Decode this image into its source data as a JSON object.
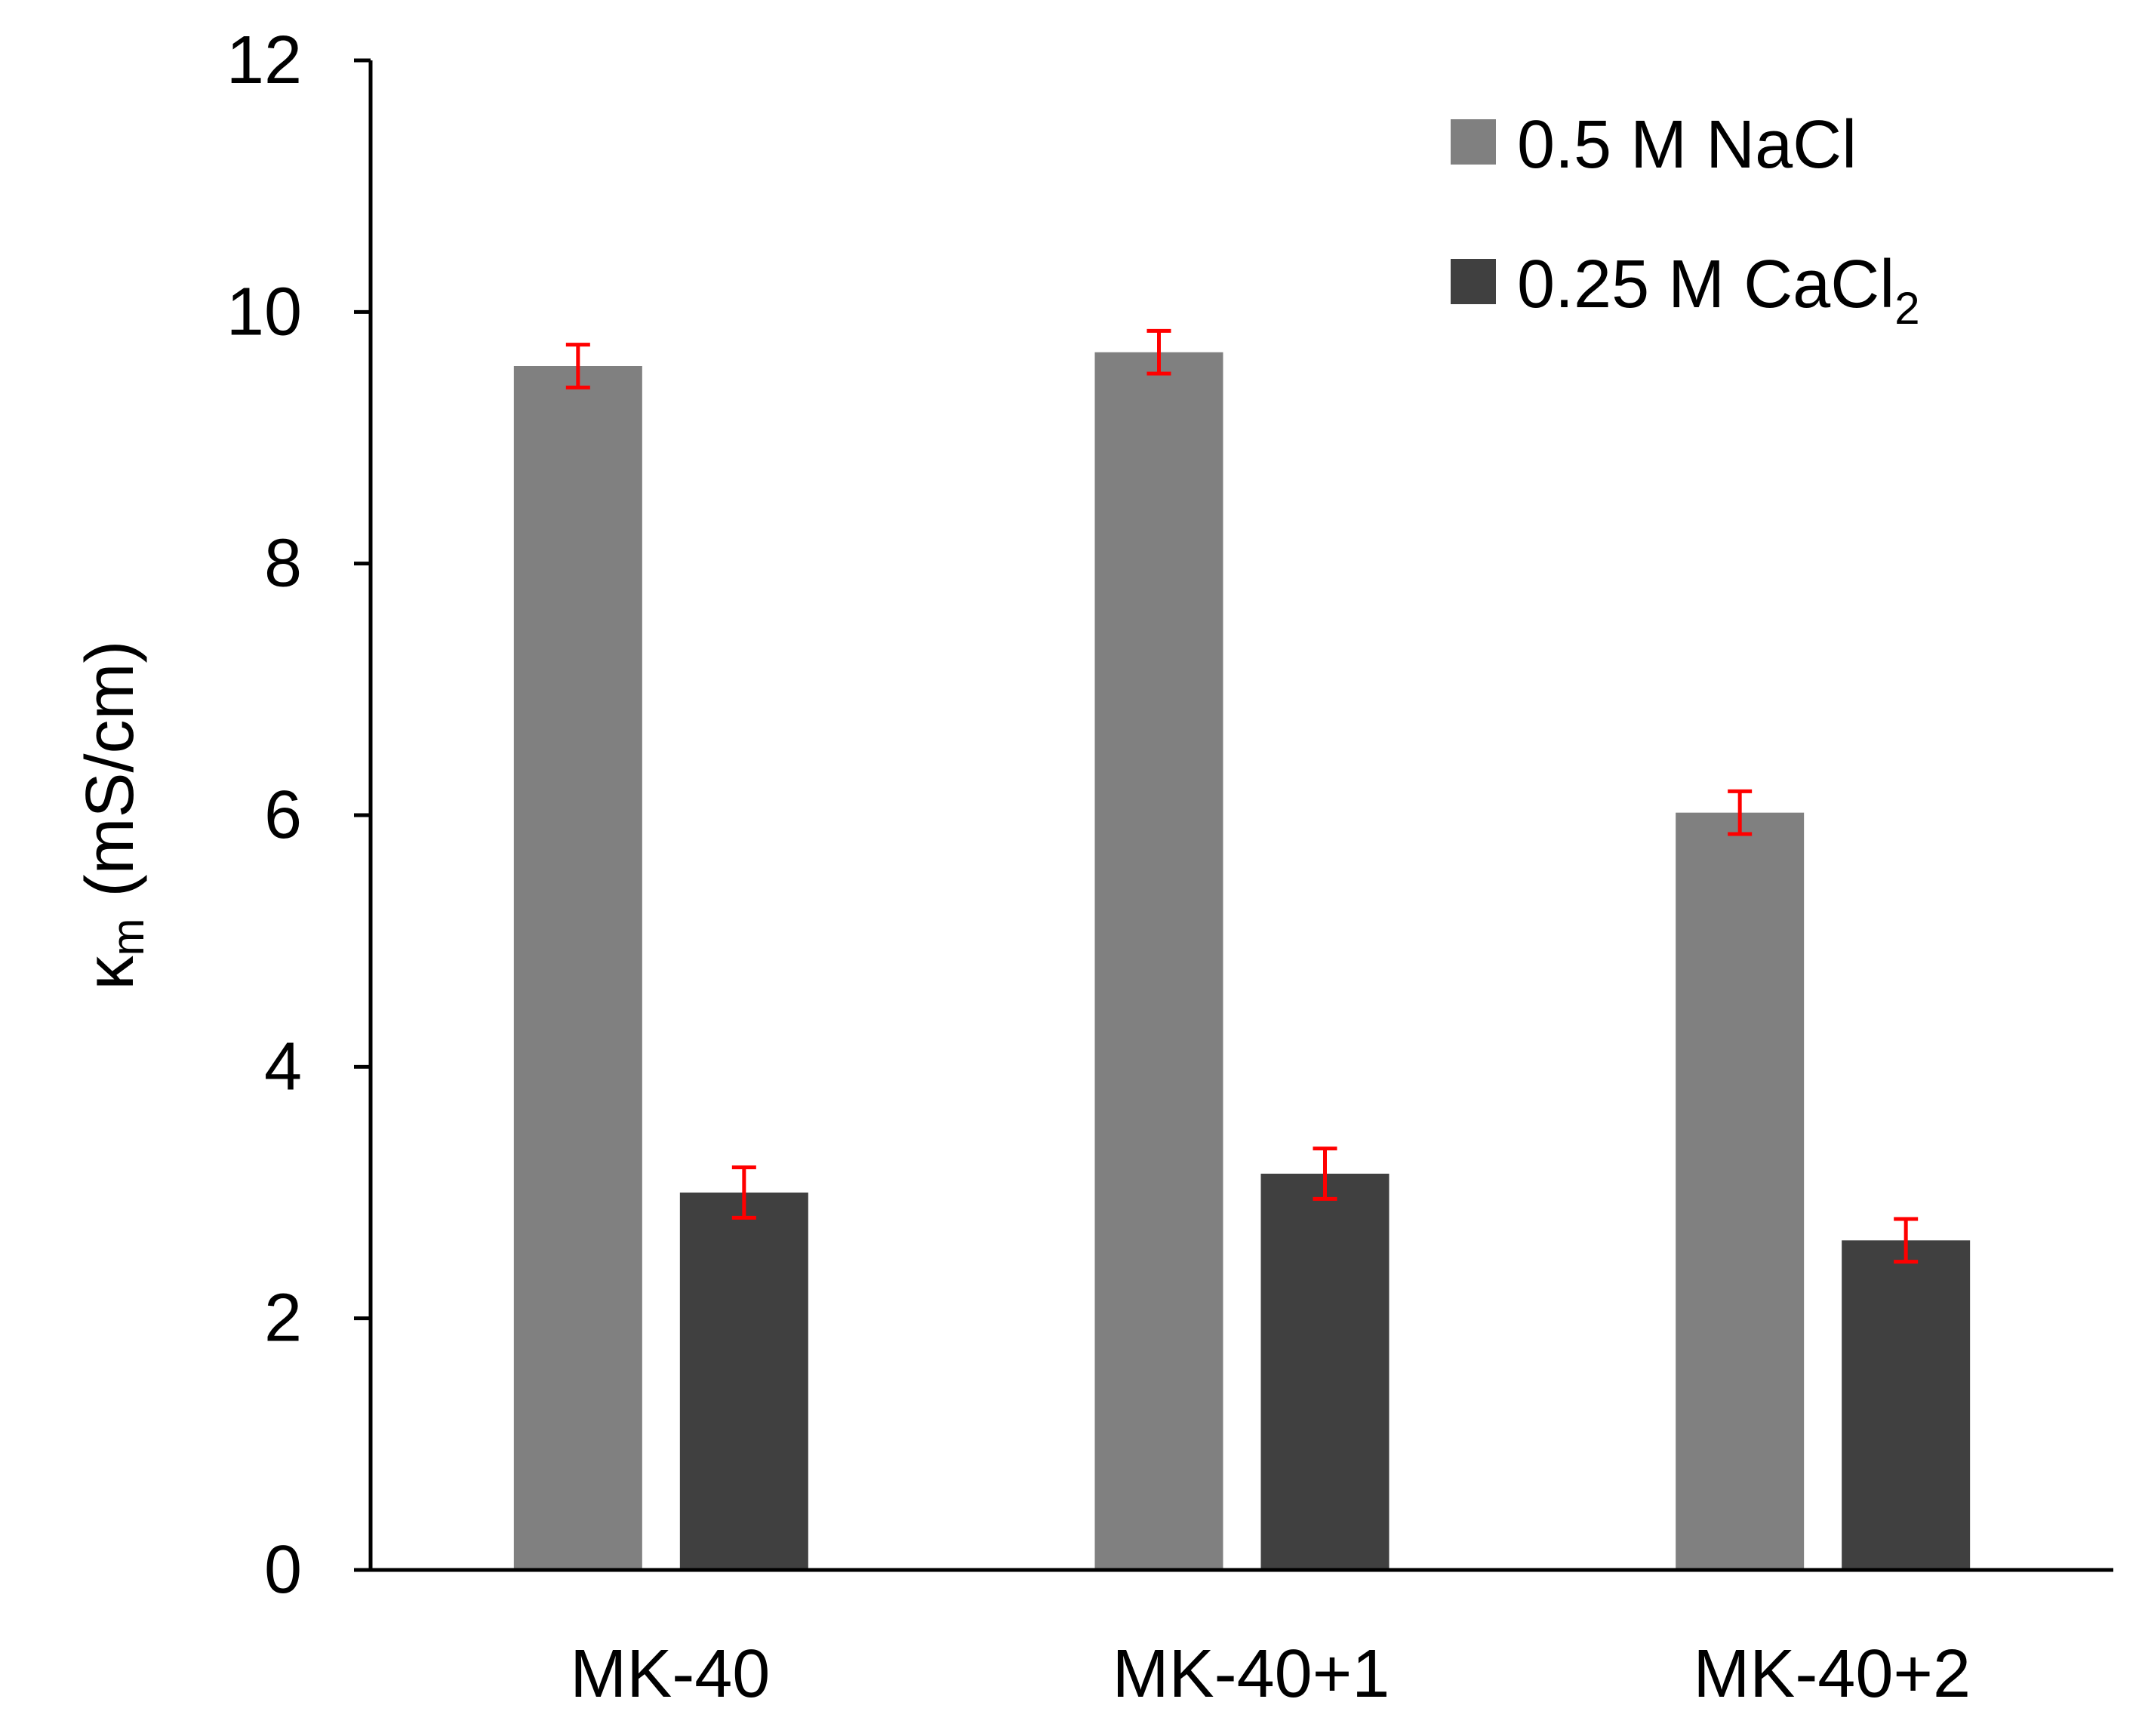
{
  "chart_data": {
    "type": "bar",
    "title": "",
    "xlabel": "",
    "ylabel": {
      "symbol": "κ",
      "subscript": "m",
      "unit": "(mS/cm)"
    },
    "ylim": [
      0,
      12
    ],
    "yticks": [
      0,
      2,
      4,
      6,
      8,
      10,
      12
    ],
    "grid": false,
    "legend_position": "top-right",
    "categories": [
      "MK-40",
      "MK-40+1",
      "MK-40+2"
    ],
    "series": [
      {
        "name": "0.5 M NaCl",
        "label_main": "0.5 M NaCl",
        "label_sub": "",
        "color": "#808080",
        "values": [
          9.57,
          9.68,
          6.02
        ],
        "errors": [
          0.17,
          0.17,
          0.17
        ]
      },
      {
        "name": "0.25 M CaCl2",
        "label_main": "0.25 M CaCl",
        "label_sub": "2",
        "color": "#404040",
        "values": [
          3.0,
          3.15,
          2.62
        ],
        "errors": [
          0.2,
          0.2,
          0.17
        ]
      }
    ],
    "error_bar_color": "#ff0000"
  }
}
